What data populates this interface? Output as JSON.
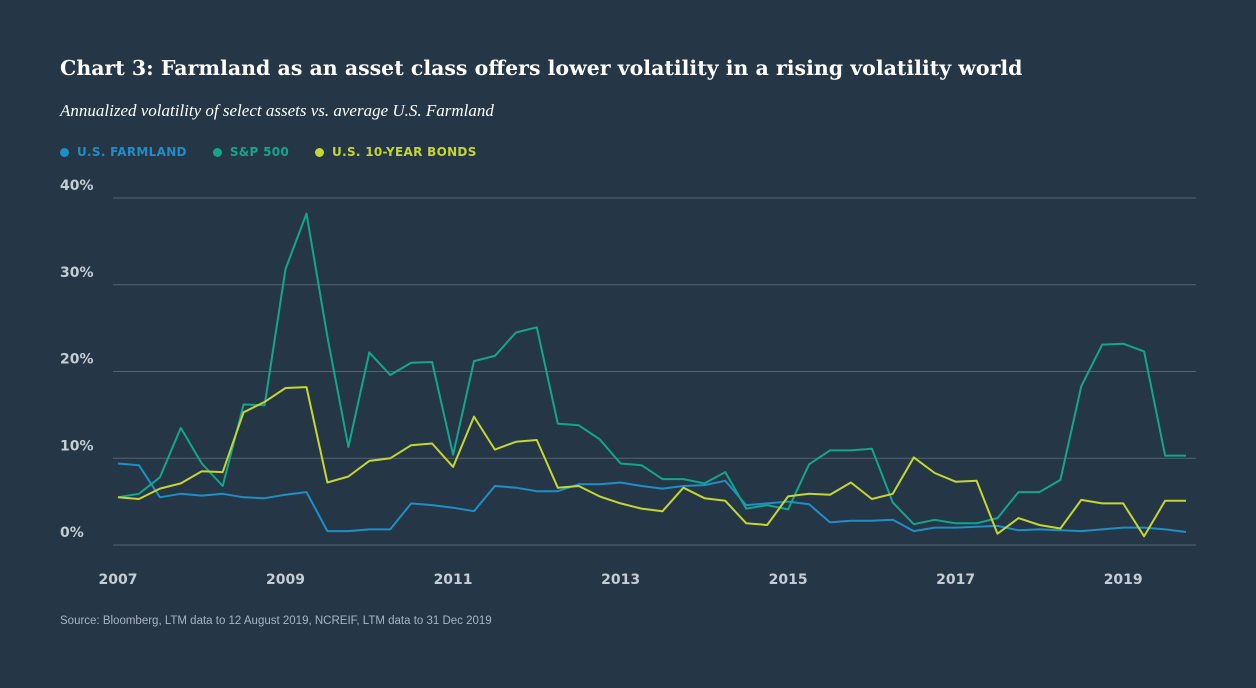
{
  "title": "Chart 3: Farmland as an asset class offers lower volatility in a rising volatility world",
  "subtitle": "Annualized volatility of select assets vs. average U.S. Farmland",
  "source": "Source: Bloomberg, LTM data to 12 August 2019, NCREIF, LTM data to 31 Dec 2019",
  "colors": {
    "background": "#253746",
    "gridline": "#55636f",
    "tick_text": "#c5ccd2"
  },
  "chart_data": {
    "type": "line",
    "title": "Chart 3: Farmland as an asset class offers lower volatility in a rising volatility world",
    "subtitle": "Annualized volatility of select assets vs. average U.S. Farmland",
    "xlabel": "",
    "ylabel": "",
    "xlim": [
      2007,
      2019.75
    ],
    "ylim": [
      0,
      40
    ],
    "x_ticks": [
      2007,
      2009,
      2011,
      2013,
      2015,
      2017,
      2019
    ],
    "x_tick_labels": [
      "2007",
      "2009",
      "2011",
      "2013",
      "2015",
      "2017",
      "2019"
    ],
    "y_ticks": [
      0,
      10,
      20,
      30,
      40
    ],
    "y_tick_labels": [
      "0%",
      "10%",
      "20%",
      "30%",
      "40%"
    ],
    "grid": true,
    "legend_position": "top-left",
    "x": [
      2007.0,
      2007.25,
      2007.5,
      2007.75,
      2008.0,
      2008.25,
      2008.5,
      2008.75,
      2009.0,
      2009.25,
      2009.5,
      2009.75,
      2010.0,
      2010.25,
      2010.5,
      2010.75,
      2011.0,
      2011.25,
      2011.5,
      2011.75,
      2012.0,
      2012.25,
      2012.5,
      2012.75,
      2013.0,
      2013.25,
      2013.5,
      2013.75,
      2014.0,
      2014.25,
      2014.5,
      2014.75,
      2015.0,
      2015.25,
      2015.5,
      2015.75,
      2016.0,
      2016.25,
      2016.5,
      2016.75,
      2017.0,
      2017.25,
      2017.5,
      2017.75,
      2018.0,
      2018.25,
      2018.5,
      2018.75,
      2019.0,
      2019.25,
      2019.5,
      2019.75
    ],
    "series": [
      {
        "name": "U.S. FARMLAND",
        "color": "#1e8fc6",
        "values": [
          9.4,
          9.2,
          5.5,
          5.9,
          5.7,
          5.9,
          5.5,
          5.4,
          5.8,
          6.1,
          1.6,
          1.6,
          1.8,
          1.8,
          4.8,
          4.6,
          4.3,
          3.9,
          6.8,
          6.6,
          6.2,
          6.2,
          7.0,
          7.0,
          7.2,
          6.8,
          6.5,
          6.8,
          6.9,
          7.4,
          4.6,
          4.8,
          5.0,
          4.7,
          2.6,
          2.8,
          2.8,
          2.9,
          1.6,
          2.0,
          2.0,
          2.1,
          2.2,
          1.7,
          1.8,
          1.7,
          1.6,
          1.8,
          2.0,
          2.0,
          1.8,
          1.5
        ]
      },
      {
        "name": "S&P 500",
        "color": "#13a68f",
        "values": [
          5.5,
          5.9,
          7.8,
          13.5,
          9.4,
          6.8,
          16.2,
          16.1,
          31.8,
          38.2,
          24.0,
          11.3,
          22.2,
          19.6,
          21.0,
          21.1,
          10.4,
          21.2,
          21.8,
          24.5,
          25.1,
          14.0,
          13.8,
          12.2,
          9.4,
          9.2,
          7.6,
          7.6,
          7.1,
          8.4,
          4.2,
          4.6,
          4.1,
          9.3,
          10.9,
          10.9,
          11.1,
          4.9,
          2.4,
          2.9,
          2.5,
          2.5,
          3.1,
          6.1,
          6.1,
          7.5,
          18.3,
          23.1,
          23.2,
          22.3,
          10.3,
          10.3
        ]
      },
      {
        "name": "U.S. 10-YEAR BONDS",
        "color": "#c5d631",
        "values": [
          5.5,
          5.3,
          6.5,
          7.1,
          8.5,
          8.4,
          15.3,
          16.5,
          18.1,
          18.2,
          7.2,
          7.9,
          9.7,
          10.0,
          11.5,
          11.7,
          9.0,
          14.8,
          11.0,
          11.9,
          12.1,
          6.6,
          6.8,
          5.6,
          4.8,
          4.2,
          3.9,
          6.6,
          5.4,
          5.1,
          2.5,
          2.3,
          5.6,
          5.9,
          5.8,
          7.2,
          5.3,
          5.9,
          10.1,
          8.3,
          7.3,
          7.4,
          1.3,
          3.1,
          2.3,
          1.9,
          5.2,
          4.8,
          4.8,
          1.0,
          5.1,
          5.1
        ]
      }
    ]
  }
}
